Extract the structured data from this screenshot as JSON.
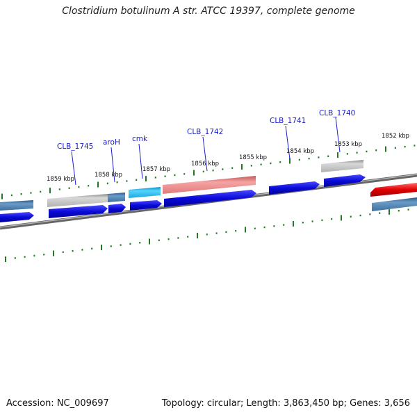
{
  "title": "Clostridium botulinum A str. ATCC 19397, complete genome",
  "footer": {
    "accession": "Accession: NC_009697",
    "summary": "Topology: circular; Length: 3,863,450 bp; Genes: 3,656"
  },
  "ticks": [
    "1859 kbp",
    "1858 kbp",
    "1857 kbp",
    "1856 kbp",
    "1855 kbp",
    "1854 kbp",
    "1853 kbp",
    "1852 kbp"
  ],
  "gene_labels": [
    "CLB_1745",
    "aroH",
    "cmk",
    "CLB_1742",
    "CLB_1741",
    "CLB_1740"
  ],
  "colors": {
    "cds": "#0a0ad8",
    "gene_light": "#b4b4b4",
    "gene_steel": "#4a7fb0",
    "gene_cyan": "#1fb6e6",
    "gene_pink": "#e88484",
    "gene_red": "#e00000",
    "tick": "#1f7a1f",
    "backbone": "#777777"
  }
}
